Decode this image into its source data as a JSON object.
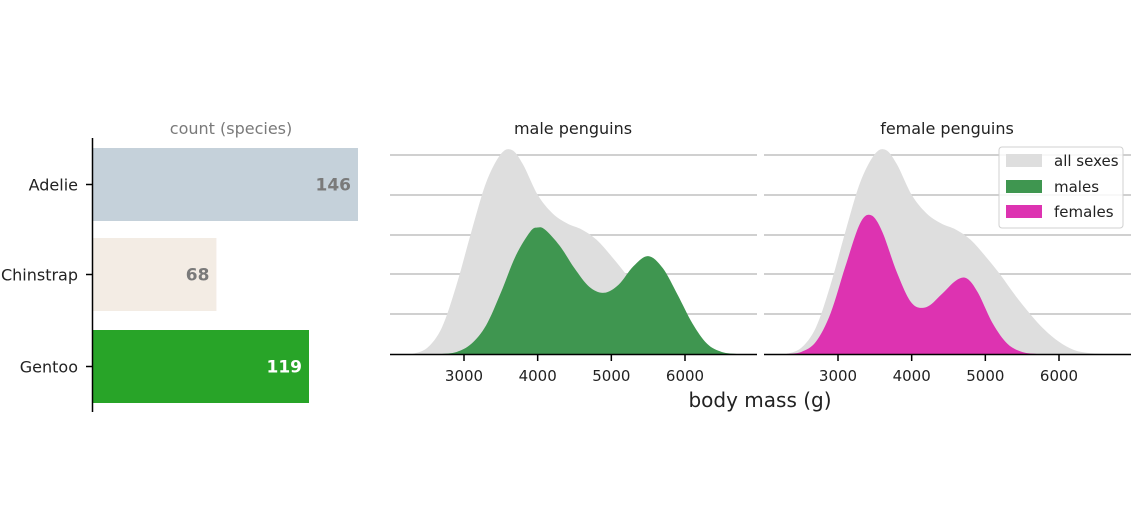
{
  "colors": {
    "adelie": "#c5d1da",
    "chinstrap": "#f3ece4",
    "gentoo": "#28a428",
    "all": "#dedede",
    "males": "#3f9650",
    "females": "#dd33b1",
    "grid": "#c0c0c0",
    "muted_text": "#7a7a7a"
  },
  "chart_data": [
    {
      "type": "bar",
      "orientation": "horizontal",
      "title": "count (species)",
      "categories": [
        "Adelie",
        "Chinstrap",
        "Gentoo"
      ],
      "values": [
        146,
        68,
        119
      ],
      "value_labels": [
        "146",
        "68",
        "119"
      ],
      "xlim": [
        0,
        146
      ]
    },
    {
      "type": "area",
      "title": "male penguins",
      "x_ticks": [
        "3000",
        "4000",
        "5000",
        "6000"
      ],
      "xlim": [
        2000,
        6900
      ],
      "ylim": [
        0,
        1
      ],
      "series": [
        {
          "name": "all sexes",
          "x": [
            2300,
            2500,
            2700,
            2900,
            3100,
            3300,
            3500,
            3650,
            3800,
            4000,
            4200,
            4400,
            4600,
            4800,
            5000,
            5200,
            5400,
            5600,
            5800,
            6000,
            6200,
            6400,
            6600
          ],
          "y": [
            0,
            0.03,
            0.13,
            0.34,
            0.6,
            0.84,
            0.98,
            1.0,
            0.93,
            0.78,
            0.69,
            0.64,
            0.61,
            0.56,
            0.48,
            0.39,
            0.29,
            0.2,
            0.12,
            0.06,
            0.02,
            0.005,
            0
          ]
        },
        {
          "name": "males",
          "x": [
            2700,
            2900,
            3100,
            3300,
            3500,
            3700,
            3900,
            4000,
            4100,
            4300,
            4500,
            4700,
            4900,
            5100,
            5300,
            5500,
            5700,
            5900,
            6100,
            6300,
            6500,
            6700
          ],
          "y": [
            0,
            0.01,
            0.05,
            0.14,
            0.3,
            0.48,
            0.6,
            0.62,
            0.61,
            0.53,
            0.42,
            0.33,
            0.3,
            0.34,
            0.43,
            0.48,
            0.42,
            0.29,
            0.15,
            0.05,
            0.01,
            0
          ]
        }
      ]
    },
    {
      "type": "area",
      "title": "female penguins",
      "x_ticks": [
        "3000",
        "4000",
        "5000",
        "6000"
      ],
      "xlim": [
        2000,
        6900
      ],
      "ylim": [
        0,
        1
      ],
      "series": [
        {
          "name": "all sexes",
          "x": [
            2300,
            2500,
            2700,
            2900,
            3100,
            3300,
            3500,
            3650,
            3800,
            4000,
            4200,
            4400,
            4600,
            4800,
            5000,
            5200,
            5400,
            5600,
            5800,
            6000,
            6200,
            6400,
            6600
          ],
          "y": [
            0,
            0.03,
            0.13,
            0.34,
            0.6,
            0.84,
            0.98,
            1.0,
            0.93,
            0.78,
            0.69,
            0.64,
            0.61,
            0.56,
            0.48,
            0.39,
            0.29,
            0.2,
            0.12,
            0.06,
            0.02,
            0.005,
            0
          ]
        },
        {
          "name": "females",
          "x": [
            2300,
            2500,
            2700,
            2900,
            3100,
            3300,
            3450,
            3600,
            3800,
            4000,
            4200,
            4400,
            4600,
            4750,
            4900,
            5100,
            5300,
            5500,
            5700
          ],
          "y": [
            0,
            0.01,
            0.06,
            0.2,
            0.43,
            0.64,
            0.68,
            0.6,
            0.4,
            0.25,
            0.23,
            0.29,
            0.36,
            0.37,
            0.3,
            0.15,
            0.05,
            0.01,
            0
          ]
        }
      ]
    }
  ],
  "legend": {
    "placement": "top-right",
    "items": [
      {
        "label": "all sexes",
        "color_key": "all"
      },
      {
        "label": "males",
        "color_key": "males"
      },
      {
        "label": "females",
        "color_key": "females"
      }
    ]
  },
  "shared_xlabel": "body mass (g)"
}
